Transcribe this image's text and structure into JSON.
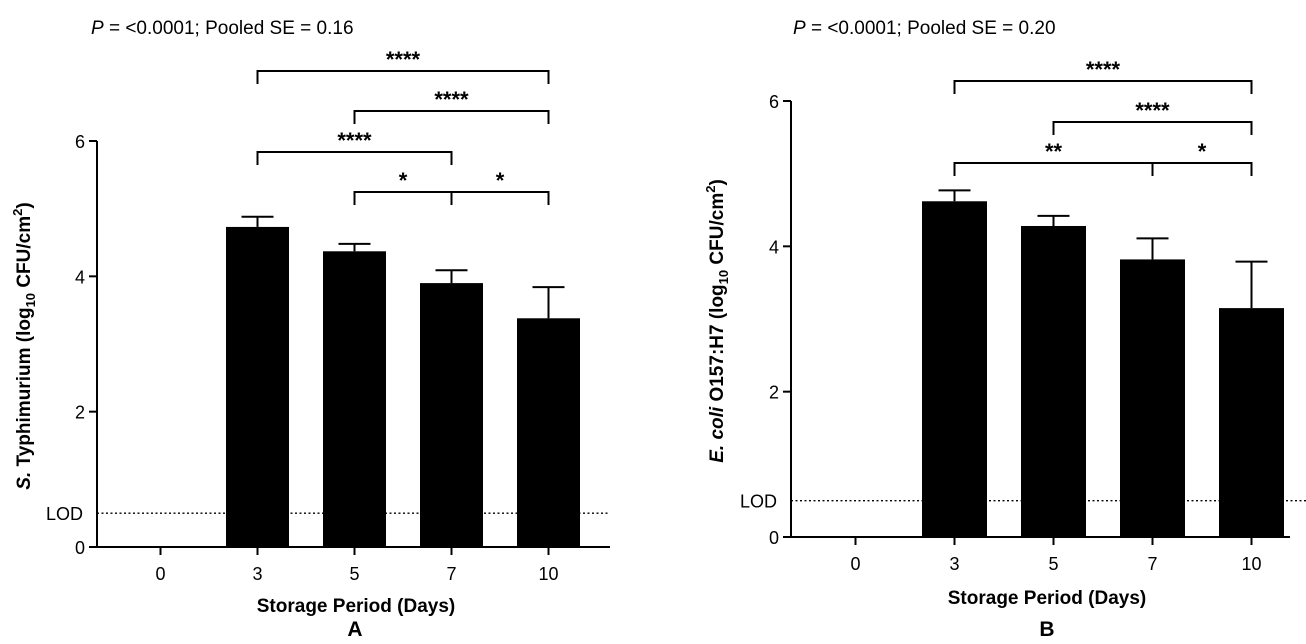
{
  "chart_data": [
    {
      "type": "bar",
      "panel": "A",
      "header_italic": "P",
      "header_rest": " = <0.0001; Pooled SE = 0.16",
      "xlabel": "Storage Period (Days)",
      "ylabel_italic": "S.",
      "ylabel_rest": " Typhimurium (log",
      "ylabel_sub": "10",
      "ylabel_unit": " CFU/cm",
      "ylabel_sup": "2",
      "ylabel_close": ")",
      "categories": [
        "0",
        "3",
        "5",
        "7",
        "10"
      ],
      "values": [
        0,
        4.73,
        4.37,
        3.9,
        3.38
      ],
      "errors": [
        0,
        0.15,
        0.11,
        0.19,
        0.46
      ],
      "ylim": [
        0,
        6
      ],
      "yticks": [
        0,
        2,
        4,
        6
      ],
      "lod_label": "LOD",
      "lod_value": 0.5,
      "comparisons": [
        {
          "from": "5",
          "to": "7",
          "stars": "*",
          "level": 1
        },
        {
          "from": "7",
          "to": "10",
          "stars": "*",
          "level": 1
        },
        {
          "from": "3",
          "to": "7",
          "stars": "****",
          "level": 2
        },
        {
          "from": "5",
          "to": "10",
          "stars": "****",
          "level": 3
        },
        {
          "from": "3",
          "to": "10",
          "stars": "****",
          "level": 4
        }
      ]
    },
    {
      "type": "bar",
      "panel": "B",
      "header_italic": "P",
      "header_rest": " = <0.0001; Pooled SE = 0.20",
      "xlabel": "Storage Period (Days)",
      "ylabel_italic": "E. coli",
      "ylabel_rest": " O157:H7 (log",
      "ylabel_sub": "10",
      "ylabel_unit": " CFU/cm",
      "ylabel_sup": "2",
      "ylabel_close": ")",
      "categories": [
        "0",
        "3",
        "5",
        "7",
        "10"
      ],
      "values": [
        0,
        4.62,
        4.28,
        3.82,
        3.15
      ],
      "errors": [
        0,
        0.15,
        0.14,
        0.29,
        0.64
      ],
      "ylim": [
        0,
        6
      ],
      "yticks": [
        0,
        2,
        4,
        6
      ],
      "lod_label": "LOD",
      "lod_value": 0.5,
      "comparisons": [
        {
          "from": "3",
          "to": "7",
          "stars": "**",
          "level": 1
        },
        {
          "from": "7",
          "to": "10",
          "stars": "*",
          "level": 1
        },
        {
          "from": "5",
          "to": "10",
          "stars": "****",
          "level": 2
        },
        {
          "from": "3",
          "to": "10",
          "stars": "****",
          "level": 3
        }
      ]
    }
  ],
  "colors": {
    "bar": "#000000",
    "axis": "#000000"
  }
}
